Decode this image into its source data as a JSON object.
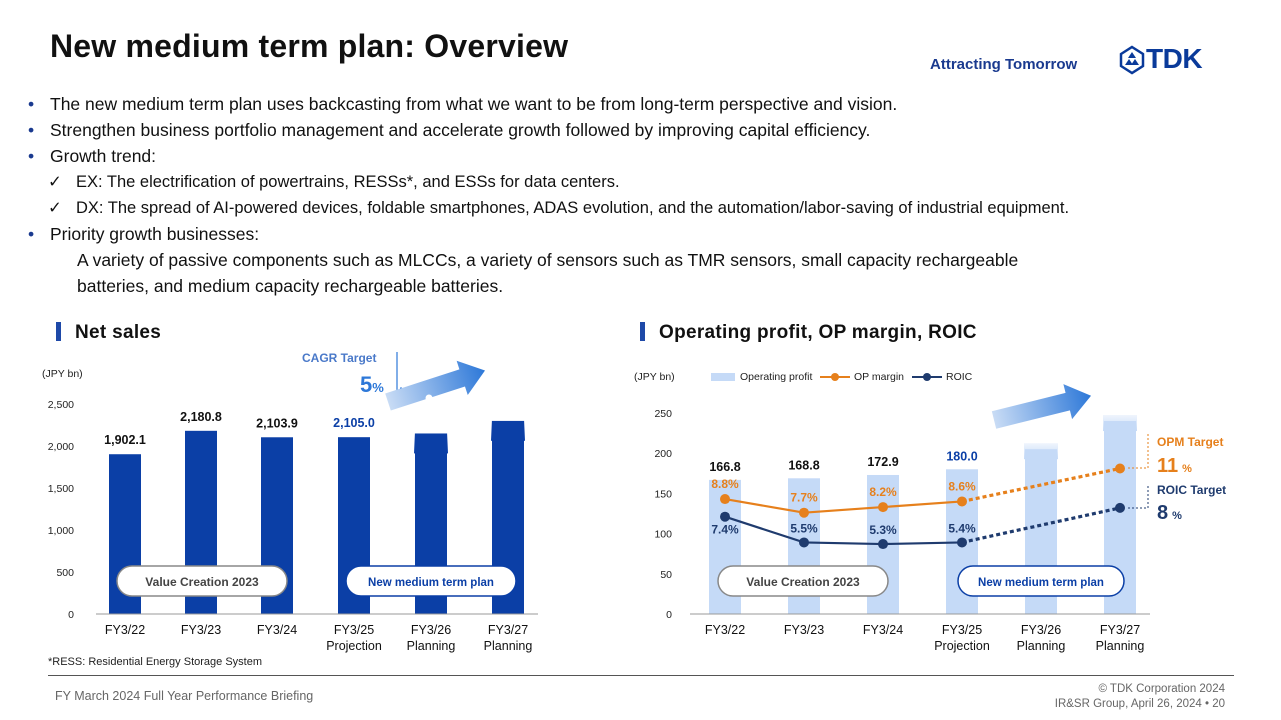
{
  "header": {
    "title": "New medium term plan: Overview",
    "tagline": "Attracting Tomorrow",
    "logo": "TDK"
  },
  "bullets": {
    "b1": "The new medium term plan uses backcasting from what we want to be from long-term perspective and vision.",
    "b2": "Strengthen business portfolio management and accelerate growth followed by improving capital efficiency.",
    "b3": "Growth trend:",
    "c1": "EX: The electrification of powertrains, RESSs*, and ESSs for data centers.",
    "c2": "DX: The spread of AI-powered devices, foldable smartphones, ADAS evolution, and the automation/labor-saving of industrial equipment.",
    "b4": "Priority growth businesses:",
    "b4_line1": "A variety of passive components such as MLCCs, a variety of sensors such as TMR sensors, small capacity rechargeable",
    "b4_line2": "batteries, and medium capacity rechargeable batteries.",
    "check": "✓"
  },
  "chart_data": [
    {
      "type": "bar",
      "title": "Net sales",
      "ylabel": "(JPY bn)",
      "ylim": [
        0,
        2500
      ],
      "yticks": [
        0,
        500,
        1000,
        1500,
        2000,
        2500
      ],
      "ytick_labels": [
        "0",
        "500",
        "1,000",
        "1,500",
        "2,000",
        "2,500"
      ],
      "categories": [
        "FY3/22",
        "FY3/23",
        "FY3/24",
        "FY3/25",
        "FY3/26",
        "FY3/27"
      ],
      "category_sublabels": [
        "",
        "",
        "",
        "Projection",
        "Planning",
        "Planning"
      ],
      "values": [
        1902.1,
        2180.8,
        2103.9,
        2105.0,
        2150,
        2300
      ],
      "value_labels": [
        "1,902.1",
        "2,180.8",
        "2,103.9",
        "2,105.0",
        "",
        ""
      ],
      "annotations": {
        "cagr_label": "CAGR Target",
        "cagr_value": "5",
        "cagr_unit": "%",
        "pill_left": "Value Creation 2023",
        "pill_right": "New medium term plan"
      }
    },
    {
      "type": "bar+line",
      "title": "Operating profit, OP margin, ROIC",
      "ylabel": "(JPY bn)",
      "ylim": [
        0,
        250
      ],
      "yticks": [
        0,
        50,
        100,
        150,
        200,
        250
      ],
      "ytick_labels": [
        "0",
        "50",
        "100",
        "150",
        "200",
        "250"
      ],
      "categories": [
        "FY3/22",
        "FY3/23",
        "FY3/24",
        "FY3/25",
        "FY3/26",
        "FY3/27"
      ],
      "category_sublabels": [
        "",
        "",
        "",
        "Projection",
        "Planning",
        "Planning"
      ],
      "legend": [
        "Operating profit",
        "OP margin",
        "ROIC"
      ],
      "bars": {
        "name": "Operating profit",
        "values": [
          166.8,
          168.8,
          172.9,
          180.0,
          205,
          240
        ],
        "value_labels": [
          "166.8",
          "168.8",
          "172.9",
          "180.0",
          "",
          ""
        ]
      },
      "series": [
        {
          "name": "OP margin",
          "values": [
            8.8,
            7.7,
            8.2,
            8.6,
            null,
            11
          ],
          "labels": [
            "8.8%",
            "7.7%",
            "8.2%",
            "8.6%",
            "",
            ""
          ],
          "plot_y": [
            143,
            126,
            133,
            140,
            null,
            181
          ]
        },
        {
          "name": "ROIC",
          "values": [
            7.4,
            5.5,
            5.3,
            5.4,
            null,
            8
          ],
          "labels": [
            "7.4%",
            "5.5%",
            "5.3%",
            "5.4%",
            "",
            ""
          ],
          "plot_y": [
            121,
            89,
            87,
            89,
            null,
            132
          ]
        }
      ],
      "annotations": {
        "opm_label": "OPM Target",
        "opm_value": "11",
        "roic_label": "ROIC Target",
        "roic_value": "8",
        "unit": "%",
        "pill_left": "Value Creation 2023",
        "pill_right": "New medium term plan"
      }
    }
  ],
  "footnote": "*RESS: Residential Energy Storage System",
  "footer": {
    "left": "FY March 2024 Full Year Performance Briefing",
    "right1": "© TDK Corporation 2024",
    "right2": "IR&SR Group, April 26, 2024 • 20"
  },
  "colors": {
    "navy": "#0a3a9a",
    "bar_blue": "#0b3fa6",
    "light_blue": "#c5daf7",
    "orange": "#e6801c",
    "dark_navy": "#1f3b6e",
    "arrow_blue": "#2d78d8"
  }
}
